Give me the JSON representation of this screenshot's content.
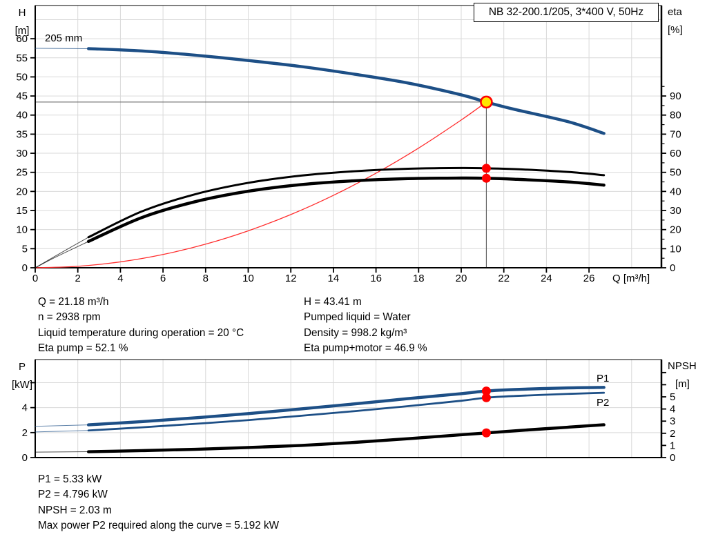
{
  "title_box": {
    "label": "NB 32-200.1/205, 3*400 V, 50Hz"
  },
  "info_top": {
    "left": [
      "Q = 21.18 m³/h",
      "n = 2938 rpm",
      "Liquid temperature during operation = 20 °C",
      "Eta pump = 52.1 %"
    ],
    "right": [
      "H = 43.41 m",
      "Pumped liquid = Water",
      "Density = 998.2 kg/m³",
      "Eta pump+motor = 46.9 %"
    ]
  },
  "info_bottom": {
    "lines": [
      "P1 = 5.33 kW",
      "P2 = 4.796 kW",
      "NPSH = 2.03 m",
      "Max power P2 required along the curve = 5.192 kW"
    ]
  },
  "colors": {
    "curve_blue": "#1D4F86",
    "curve_black": "#000000",
    "system_red": "#FF2D2D",
    "marker_red": "#FF0000",
    "duty_yellow": "#FFE600",
    "grid": "#D9D9D9",
    "crosshair": "#5A5A5A"
  },
  "chart_data": [
    {
      "id": "hq",
      "name": "hq-efficiency-chart",
      "type": "line",
      "grid_color": "#D9D9D9",
      "x": {
        "label": "Q [m³/h]",
        "min": 0,
        "max": 29.4,
        "ticks": [
          0,
          2,
          4,
          6,
          8,
          10,
          12,
          14,
          16,
          18,
          20,
          22,
          24,
          26
        ],
        "grid": [
          2,
          4,
          6,
          8,
          10,
          12,
          14,
          16,
          18,
          20,
          22,
          24,
          26,
          28
        ]
      },
      "y_left": {
        "title": "H",
        "unit": "[m]",
        "min": 0,
        "max": 68.7,
        "ticks": [
          0,
          5,
          10,
          15,
          20,
          25,
          30,
          35,
          40,
          45,
          50,
          55,
          60
        ],
        "tick_labels": [
          0,
          5,
          10,
          15,
          20,
          25,
          30,
          35,
          40,
          45,
          50,
          55,
          60
        ],
        "grid": [
          5,
          10,
          15,
          20,
          25,
          30,
          35,
          40,
          45,
          50,
          55,
          60,
          65
        ]
      },
      "y_right": {
        "title": "eta",
        "unit": "[%]",
        "min": 0,
        "max": 137.4,
        "ticks": [
          0,
          10,
          20,
          30,
          40,
          50,
          60,
          70,
          80,
          90
        ],
        "tick_labels": [
          0,
          10,
          20,
          30,
          40,
          50,
          60,
          70,
          80,
          90
        ],
        "minor_ticks": [
          5,
          15,
          25,
          35,
          45,
          55,
          65,
          75,
          85,
          95
        ]
      },
      "crosshair": {
        "x": 21.18,
        "y": 43.41,
        "color": "#5A5A5A"
      },
      "series": [
        {
          "name": "pump-curve",
          "label": "205 mm",
          "label_color": "#000000",
          "axis": "left",
          "color": "#1D4F86",
          "width": 4.4,
          "thin_until_x": 2.5,
          "points": [
            [
              0,
              57.5
            ],
            [
              2.5,
              57.4
            ],
            [
              5,
              56.8
            ],
            [
              7.5,
              55.7
            ],
            [
              10,
              54.3
            ],
            [
              12.5,
              52.7
            ],
            [
              15,
              50.7
            ],
            [
              17.5,
              48.4
            ],
            [
              20,
              45.3
            ],
            [
              21.18,
              43.41
            ],
            [
              22.5,
              41.5
            ],
            [
              25,
              38.3
            ],
            [
              26.7,
              35.2
            ]
          ]
        },
        {
          "name": "system-curve",
          "axis": "left",
          "color": "#FF2D2D",
          "width": 1.3,
          "points": [
            [
              0,
              0
            ],
            [
              2,
              0.39
            ],
            [
              4,
              1.55
            ],
            [
              6,
              3.48
            ],
            [
              8,
              6.19
            ],
            [
              10,
              9.68
            ],
            [
              12,
              13.94
            ],
            [
              14,
              18.97
            ],
            [
              16,
              24.78
            ],
            [
              18,
              31.36
            ],
            [
              20,
              38.71
            ],
            [
              21.18,
              43.41
            ]
          ]
        },
        {
          "name": "eta-pump-curve",
          "axis": "right",
          "color": "#000000",
          "width": 3,
          "thin_until_x": 2.5,
          "points": [
            [
              0,
              0
            ],
            [
              1,
              6.5
            ],
            [
              2.5,
              16
            ],
            [
              5,
              29.5
            ],
            [
              7.5,
              38.5
            ],
            [
              10,
              44.5
            ],
            [
              12.5,
              48.3
            ],
            [
              15,
              50.6
            ],
            [
              17.5,
              51.9
            ],
            [
              20,
              52.3
            ],
            [
              21.18,
              52.1
            ],
            [
              22.5,
              51.7
            ],
            [
              25,
              50.2
            ],
            [
              26.7,
              48.5
            ]
          ]
        },
        {
          "name": "eta-pump-motor-curve",
          "axis": "right",
          "color": "#000000",
          "width": 4.4,
          "thin_until_x": 2.5,
          "points": [
            [
              0,
              0
            ],
            [
              1,
              5.8
            ],
            [
              2.5,
              13.8
            ],
            [
              5,
              26.3
            ],
            [
              7.5,
              34.6
            ],
            [
              10,
              40.1
            ],
            [
              12.5,
              43.6
            ],
            [
              15,
              45.6
            ],
            [
              17.5,
              46.7
            ],
            [
              20,
              47.0
            ],
            [
              21.18,
              46.9
            ],
            [
              22.5,
              46.4
            ],
            [
              25,
              45.0
            ],
            [
              26.7,
              43.3
            ]
          ]
        }
      ],
      "markers": [
        {
          "name": "duty-point",
          "axis": "left",
          "x": 21.18,
          "y": 43.41,
          "r": 8,
          "fill": "#FFE600",
          "stroke": "#FF0000",
          "stroke_width": 2.6,
          "interactable": true
        },
        {
          "name": "eta-pump-point",
          "axis": "right",
          "x": 21.18,
          "y": 52.1,
          "r": 6.5,
          "fill": "#FF0000"
        },
        {
          "name": "eta-pump-motor-point",
          "axis": "right",
          "x": 21.18,
          "y": 46.9,
          "r": 6.5,
          "fill": "#FF0000"
        }
      ]
    },
    {
      "id": "power",
      "name": "power-npsh-chart",
      "type": "line",
      "grid_color": "#D9D9D9",
      "x": {
        "label": "",
        "min": 0,
        "max": 29.4,
        "ticks": [],
        "grid": [
          2,
          4,
          6,
          8,
          10,
          12,
          14,
          16,
          18,
          20,
          22,
          24,
          26,
          28
        ]
      },
      "y_left": {
        "title": "P",
        "unit": "[kW]",
        "min": 0,
        "max": 7.85,
        "ticks": [
          0,
          2,
          4,
          6
        ],
        "tick_labels": [
          0,
          2,
          4
        ],
        "grid": [
          2,
          4,
          6
        ]
      },
      "y_right": {
        "title": "NPSH",
        "unit": "[m]",
        "min": 0,
        "max": 8.07,
        "ticks": [
          0,
          1,
          2,
          3,
          4,
          5,
          6,
          7
        ],
        "tick_labels": [
          0,
          1,
          2,
          3,
          4,
          5
        ],
        "minor_ticks": []
      },
      "series": [
        {
          "name": "p1-curve",
          "label": "P1",
          "label_color": "#1D4F86",
          "axis": "left",
          "color": "#1D4F86",
          "width": 4.4,
          "thin_until_x": 2.5,
          "points": [
            [
              0,
              2.5
            ],
            [
              2.5,
              2.62
            ],
            [
              5,
              2.88
            ],
            [
              7.5,
              3.18
            ],
            [
              10,
              3.52
            ],
            [
              12.5,
              3.9
            ],
            [
              15,
              4.3
            ],
            [
              17.5,
              4.72
            ],
            [
              20,
              5.12
            ],
            [
              21.18,
              5.33
            ],
            [
              22.5,
              5.45
            ],
            [
              25,
              5.58
            ],
            [
              26.7,
              5.62
            ]
          ]
        },
        {
          "name": "p2-curve",
          "label": "P2",
          "label_color": "#1D4F86",
          "axis": "left",
          "color": "#1D4F86",
          "width": 2.8,
          "thin_until_x": 2.5,
          "points": [
            [
              0,
              2.05
            ],
            [
              2.5,
              2.17
            ],
            [
              5,
              2.42
            ],
            [
              7.5,
              2.7
            ],
            [
              10,
              3.0
            ],
            [
              12.5,
              3.35
            ],
            [
              15,
              3.72
            ],
            [
              17.5,
              4.12
            ],
            [
              20,
              4.55
            ],
            [
              21.18,
              4.796
            ],
            [
              22.5,
              4.93
            ],
            [
              25,
              5.1
            ],
            [
              26.7,
              5.19
            ]
          ]
        },
        {
          "name": "npsh-curve",
          "axis": "right",
          "color": "#000000",
          "width": 4.4,
          "thin_until_x": 2.5,
          "points": [
            [
              0,
              0.45
            ],
            [
              2.5,
              0.48
            ],
            [
              5,
              0.57
            ],
            [
              7.5,
              0.68
            ],
            [
              10,
              0.83
            ],
            [
              12.5,
              1.0
            ],
            [
              15,
              1.25
            ],
            [
              17.5,
              1.55
            ],
            [
              20,
              1.88
            ],
            [
              21.18,
              2.03
            ],
            [
              22.5,
              2.2
            ],
            [
              25,
              2.5
            ],
            [
              26.7,
              2.7
            ]
          ]
        }
      ],
      "markers": [
        {
          "name": "p1-point",
          "axis": "left",
          "x": 21.18,
          "y": 5.33,
          "r": 6.5,
          "fill": "#FF0000"
        },
        {
          "name": "p2-point",
          "axis": "left",
          "x": 21.18,
          "y": 4.796,
          "r": 6.5,
          "fill": "#FF0000"
        },
        {
          "name": "npsh-point",
          "axis": "right",
          "x": 21.18,
          "y": 2.03,
          "r": 6.5,
          "fill": "#FF0000"
        }
      ]
    }
  ]
}
